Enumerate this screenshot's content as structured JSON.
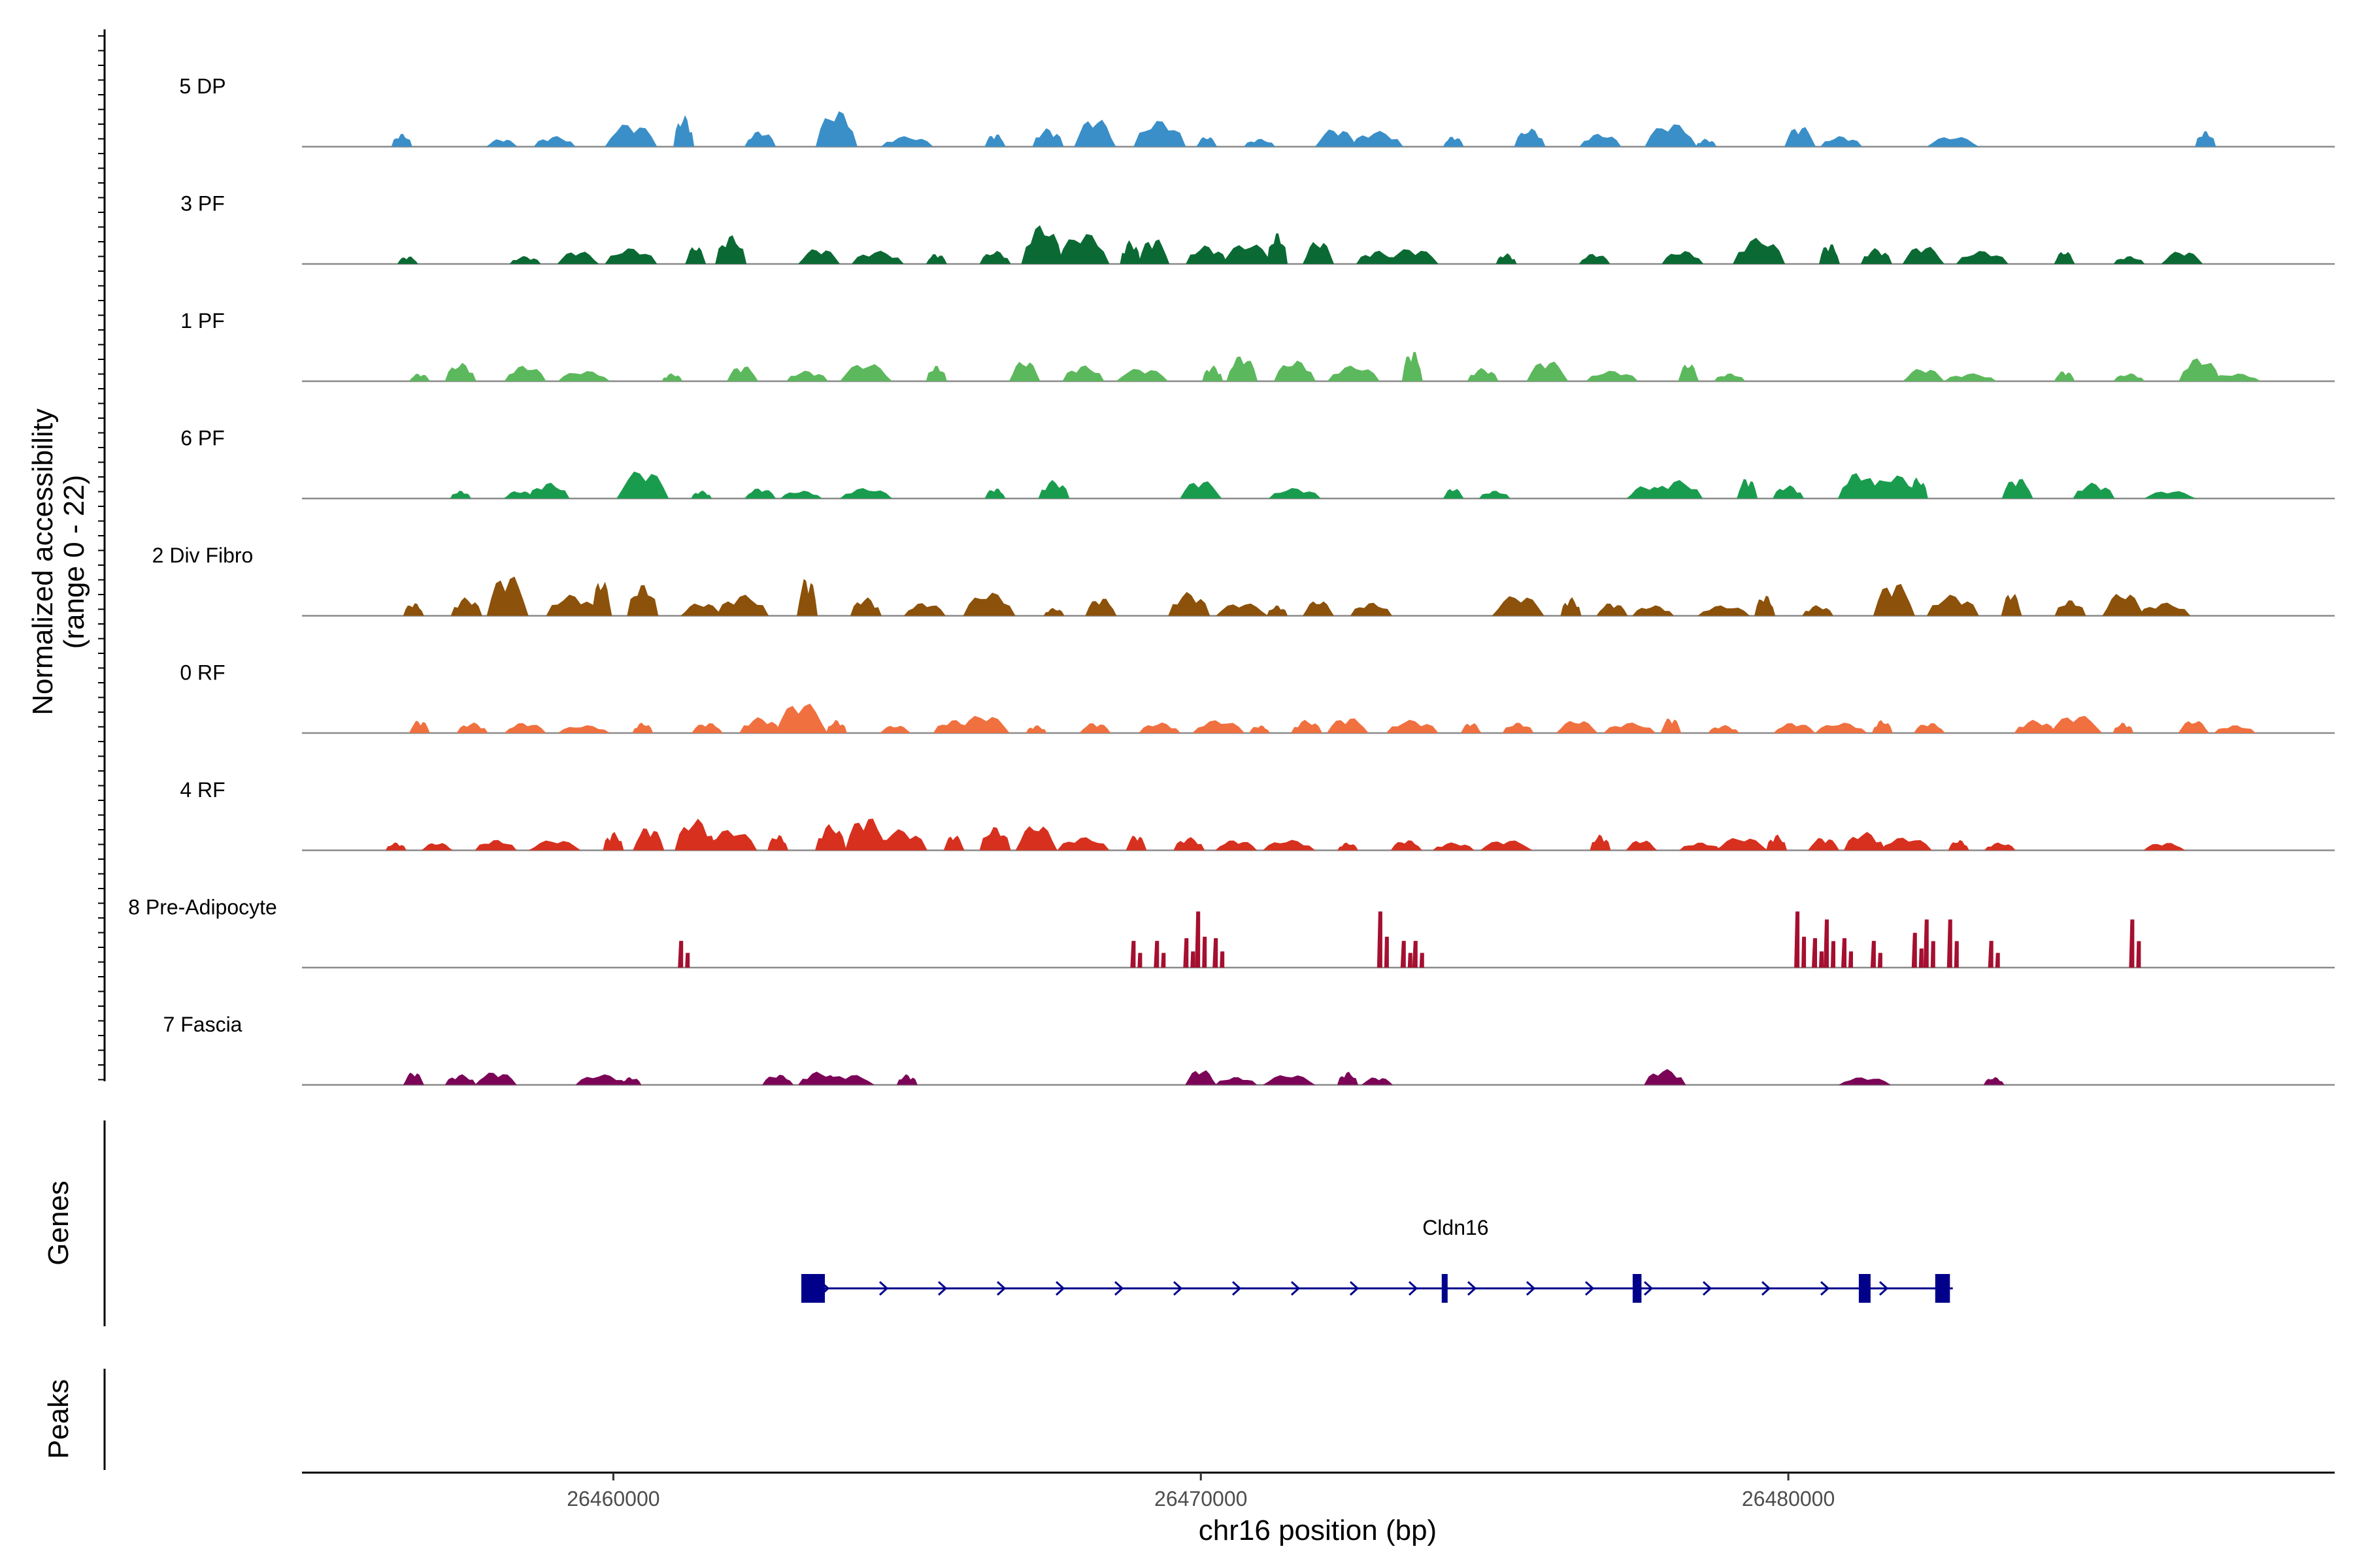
{
  "chart_data": {
    "type": "area",
    "subtype": "genome-coverage-tracks",
    "xlabel": "chr16 position (bp)",
    "ylabel": "Normalized accessibility",
    "ylabel_range": "(range 0 - 22)",
    "ylim": [
      0,
      22
    ],
    "xlim": [
      26454700,
      26489300
    ],
    "x_ticks": [
      26460000,
      26470000,
      26480000
    ],
    "x_tick_labels": [
      "26460000",
      "26470000",
      "26480000"
    ],
    "tracks": [
      {
        "name": "5 DP",
        "color": "#3a8fc8",
        "mode": "area",
        "peaks": [
          [
            26456.4,
            5
          ],
          [
            26458.1,
            3
          ],
          [
            26459.0,
            4
          ],
          [
            26460.3,
            9
          ],
          [
            26461.2,
            12
          ],
          [
            26462.5,
            6
          ],
          [
            26463.8,
            14
          ],
          [
            26465.0,
            4
          ],
          [
            26466.5,
            5
          ],
          [
            26467.4,
            7
          ],
          [
            26468.2,
            11
          ],
          [
            26469.3,
            10
          ],
          [
            26470.1,
            4
          ],
          [
            26471.0,
            3
          ],
          [
            26472.3,
            7
          ],
          [
            26473.0,
            6
          ],
          [
            26474.3,
            4
          ],
          [
            26475.6,
            7
          ],
          [
            26476.8,
            5
          ],
          [
            26478.0,
            9
          ],
          [
            26478.6,
            3
          ],
          [
            26480.2,
            8
          ],
          [
            26480.9,
            4
          ],
          [
            26482.8,
            4
          ],
          [
            26487.1,
            6
          ]
        ]
      },
      {
        "name": "3 PF",
        "color": "#0b6a34",
        "mode": "area",
        "peaks": [
          [
            26456.5,
            3
          ],
          [
            26458.5,
            3
          ],
          [
            26459.4,
            5
          ],
          [
            26460.3,
            6
          ],
          [
            26461.4,
            7
          ],
          [
            26462.0,
            11
          ],
          [
            26463.5,
            6
          ],
          [
            26464.5,
            5
          ],
          [
            26465.5,
            4
          ],
          [
            26466.5,
            5
          ],
          [
            26467.3,
            15
          ],
          [
            26468.0,
            12
          ],
          [
            26468.8,
            9
          ],
          [
            26469.2,
            10
          ],
          [
            26470.1,
            7
          ],
          [
            26470.8,
            8
          ],
          [
            26471.3,
            12
          ],
          [
            26472.0,
            9
          ],
          [
            26473.0,
            5
          ],
          [
            26473.6,
            6
          ],
          [
            26475.2,
            4
          ],
          [
            26476.7,
            4
          ],
          [
            26478.2,
            5
          ],
          [
            26479.5,
            10
          ],
          [
            26480.7,
            8
          ],
          [
            26481.5,
            6
          ],
          [
            26482.3,
            7
          ],
          [
            26483.3,
            5
          ],
          [
            26484.7,
            5
          ],
          [
            26485.8,
            3
          ],
          [
            26486.7,
            5
          ]
        ]
      },
      {
        "name": "1 PF",
        "color": "#5cb85c",
        "mode": "area",
        "peaks": [
          [
            26456.7,
            3
          ],
          [
            26457.4,
            7
          ],
          [
            26458.5,
            6
          ],
          [
            26459.5,
            4
          ],
          [
            26461.0,
            3
          ],
          [
            26462.2,
            6
          ],
          [
            26463.3,
            4
          ],
          [
            26464.3,
            7
          ],
          [
            26465.5,
            6
          ],
          [
            26467.0,
            8
          ],
          [
            26468.0,
            6
          ],
          [
            26469.0,
            5
          ],
          [
            26470.2,
            6
          ],
          [
            26470.7,
            10
          ],
          [
            26471.6,
            8
          ],
          [
            26472.6,
            6
          ],
          [
            26473.6,
            12
          ],
          [
            26474.8,
            5
          ],
          [
            26475.9,
            8
          ],
          [
            26477.0,
            4
          ],
          [
            26478.3,
            7
          ],
          [
            26479.0,
            3
          ],
          [
            26482.3,
            5
          ],
          [
            26483.1,
            3
          ],
          [
            26484.7,
            4
          ],
          [
            26485.8,
            3
          ],
          [
            26487.0,
            9
          ],
          [
            26487.6,
            3
          ]
        ]
      },
      {
        "name": "6 PF",
        "color": "#1a9c4f",
        "mode": "area",
        "peaks": [
          [
            26457.4,
            3
          ],
          [
            26458.4,
            3
          ],
          [
            26458.9,
            6
          ],
          [
            26460.5,
            11
          ],
          [
            26461.5,
            3
          ],
          [
            26462.5,
            4
          ],
          [
            26463.2,
            3
          ],
          [
            26464.3,
            4
          ],
          [
            26466.5,
            4
          ],
          [
            26467.5,
            7
          ],
          [
            26470.0,
            7
          ],
          [
            26471.6,
            4
          ],
          [
            26474.3,
            4
          ],
          [
            26475.0,
            3
          ],
          [
            26477.6,
            5
          ],
          [
            26478.1,
            7
          ],
          [
            26479.3,
            8
          ],
          [
            26480.0,
            5
          ],
          [
            26481.2,
            10
          ],
          [
            26481.8,
            9
          ],
          [
            26482.2,
            8
          ],
          [
            26483.9,
            8
          ],
          [
            26485.2,
            6
          ],
          [
            26486.5,
            3
          ]
        ]
      },
      {
        "name": "2 Div Fibro",
        "color": "#8c510a",
        "mode": "area",
        "peaks": [
          [
            26456.6,
            5
          ],
          [
            26457.5,
            7
          ],
          [
            26458.2,
            16
          ],
          [
            26459.3,
            8
          ],
          [
            26459.8,
            14
          ],
          [
            26460.5,
            12
          ],
          [
            26461.5,
            5
          ],
          [
            26462.2,
            8
          ],
          [
            26463.3,
            15
          ],
          [
            26464.3,
            7
          ],
          [
            26465.3,
            5
          ],
          [
            26466.4,
            9
          ],
          [
            26467.5,
            3
          ],
          [
            26468.3,
            7
          ],
          [
            26469.8,
            9
          ],
          [
            26470.7,
            5
          ],
          [
            26471.3,
            4
          ],
          [
            26472.0,
            6
          ],
          [
            26472.9,
            5
          ],
          [
            26475.4,
            8
          ],
          [
            26476.3,
            7
          ],
          [
            26477.0,
            5
          ],
          [
            26477.7,
            4
          ],
          [
            26478.9,
            4
          ],
          [
            26479.6,
            8
          ],
          [
            26480.5,
            4
          ],
          [
            26481.8,
            13
          ],
          [
            26482.8,
            8
          ],
          [
            26483.8,
            9
          ],
          [
            26484.8,
            6
          ],
          [
            26485.7,
            9
          ],
          [
            26486.4,
            5
          ]
        ]
      },
      {
        "name": "0 RF",
        "color": "#f07040",
        "mode": "area",
        "peaks": [
          [
            26456.7,
            5
          ],
          [
            26457.6,
            4
          ],
          [
            26458.5,
            4
          ],
          [
            26459.5,
            3
          ],
          [
            26460.5,
            4
          ],
          [
            26461.6,
            4
          ],
          [
            26462.5,
            6
          ],
          [
            26463.2,
            12
          ],
          [
            26463.8,
            5
          ],
          [
            26464.8,
            3
          ],
          [
            26465.8,
            5
          ],
          [
            26466.3,
            7
          ],
          [
            26467.2,
            3
          ],
          [
            26468.2,
            4
          ],
          [
            26469.3,
            4
          ],
          [
            26470.3,
            5
          ],
          [
            26471.0,
            3
          ],
          [
            26471.8,
            5
          ],
          [
            26472.5,
            6
          ],
          [
            26473.6,
            5
          ],
          [
            26474.6,
            4
          ],
          [
            26475.4,
            4
          ],
          [
            26476.4,
            5
          ],
          [
            26477.3,
            4
          ],
          [
            26478.0,
            6
          ],
          [
            26478.9,
            3
          ],
          [
            26480.1,
            4
          ],
          [
            26480.9,
            4
          ],
          [
            26481.6,
            5
          ],
          [
            26482.4,
            4
          ],
          [
            26484.2,
            5
          ],
          [
            26484.9,
            7
          ],
          [
            26485.7,
            4
          ],
          [
            26486.9,
            5
          ],
          [
            26487.6,
            3
          ]
        ]
      },
      {
        "name": "4 RF",
        "color": "#d7301f",
        "mode": "area",
        "peaks": [
          [
            26456.3,
            3
          ],
          [
            26457.0,
            3
          ],
          [
            26458.0,
            4
          ],
          [
            26459.0,
            4
          ],
          [
            26460.0,
            7
          ],
          [
            26460.6,
            9
          ],
          [
            26461.4,
            12
          ],
          [
            26462.0,
            8
          ],
          [
            26462.8,
            6
          ],
          [
            26463.7,
            10
          ],
          [
            26464.3,
            13
          ],
          [
            26464.9,
            8
          ],
          [
            26465.8,
            6
          ],
          [
            26466.5,
            9
          ],
          [
            26467.2,
            10
          ],
          [
            26468.0,
            5
          ],
          [
            26468.9,
            6
          ],
          [
            26469.8,
            5
          ],
          [
            26470.6,
            4
          ],
          [
            26471.5,
            4
          ],
          [
            26472.5,
            3
          ],
          [
            26473.5,
            4
          ],
          [
            26474.3,
            3
          ],
          [
            26475.2,
            4
          ],
          [
            26476.8,
            6
          ],
          [
            26477.5,
            4
          ],
          [
            26478.5,
            3
          ],
          [
            26479.2,
            5
          ],
          [
            26479.8,
            6
          ],
          [
            26480.6,
            5
          ],
          [
            26481.3,
            7
          ],
          [
            26482.0,
            5
          ],
          [
            26482.9,
            4
          ],
          [
            26483.6,
            3
          ],
          [
            26486.4,
            3
          ]
        ]
      },
      {
        "name": "8 Pre-Adipocyte",
        "color": "#a50f30",
        "mode": "bars",
        "peaks": [
          [
            26461.2,
            10
          ],
          [
            26468.9,
            10
          ],
          [
            26469.3,
            10
          ],
          [
            26469.8,
            11
          ],
          [
            26470.0,
            21
          ],
          [
            26470.3,
            11
          ],
          [
            26473.1,
            21
          ],
          [
            26473.5,
            10
          ],
          [
            26473.7,
            10
          ],
          [
            26480.2,
            21
          ],
          [
            26480.5,
            11
          ],
          [
            26480.7,
            18
          ],
          [
            26481.0,
            11
          ],
          [
            26481.5,
            10
          ],
          [
            26482.2,
            13
          ],
          [
            26482.4,
            18
          ],
          [
            26482.8,
            18
          ],
          [
            26483.5,
            10
          ],
          [
            26485.9,
            18
          ]
        ]
      },
      {
        "name": "7 Fascia",
        "color": "#7b0457",
        "mode": "area",
        "peaks": [
          [
            26456.6,
            5
          ],
          [
            26457.4,
            4
          ],
          [
            26458.0,
            5
          ],
          [
            26459.8,
            4
          ],
          [
            26460.3,
            3
          ],
          [
            26462.8,
            4
          ],
          [
            26463.5,
            5
          ],
          [
            26464.0,
            4
          ],
          [
            26465.0,
            4
          ],
          [
            26470.0,
            6
          ],
          [
            26470.6,
            3
          ],
          [
            26471.5,
            4
          ],
          [
            26472.5,
            5
          ],
          [
            26473.0,
            3
          ],
          [
            26477.9,
            6
          ],
          [
            26481.3,
            3
          ],
          [
            26483.5,
            3
          ]
        ]
      }
    ],
    "gene_track": {
      "label": "Genes",
      "gene_name": "Cldn16",
      "color": "#00008b",
      "strand": "+",
      "start": 26463200,
      "end": 26482800,
      "exons": [
        [
          26463200,
          26463600
        ],
        [
          26474100,
          26474200
        ],
        [
          26477350,
          26477500
        ],
        [
          26481200,
          26481400
        ],
        [
          26482500,
          26482750
        ]
      ]
    },
    "peak_track": {
      "label": "Peaks",
      "peaks": []
    }
  }
}
